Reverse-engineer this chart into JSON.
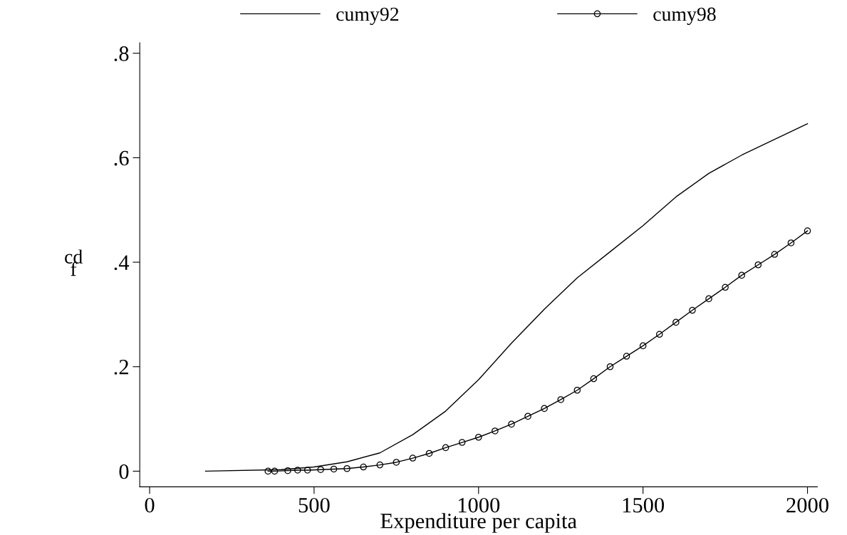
{
  "chart_data": {
    "type": "line",
    "xlabel": "Expenditure per capita",
    "ylabel": "cd\nf",
    "xlim": [
      -30,
      2030
    ],
    "ylim": [
      -0.03,
      0.82
    ],
    "xticks": [
      0,
      500,
      1000,
      1500,
      2000
    ],
    "yticks": [
      {
        "value": 0,
        "label": "0"
      },
      {
        "value": 0.2,
        "label": ".2"
      },
      {
        "value": 0.4,
        "label": ".4"
      },
      {
        "value": 0.6,
        "label": ".6"
      },
      {
        "value": 0.8,
        "label": ".8"
      }
    ],
    "grid": false,
    "legend": "top",
    "series": [
      {
        "name": "cumy92",
        "color": "#000000",
        "marker": "none",
        "x": [
          170,
          400,
          500,
          600,
          700,
          800,
          900,
          1000,
          1100,
          1200,
          1300,
          1400,
          1500,
          1600,
          1700,
          1800,
          1900,
          2000
        ],
        "values": [
          0,
          0.003,
          0.008,
          0.018,
          0.035,
          0.07,
          0.115,
          0.175,
          0.245,
          0.31,
          0.37,
          0.42,
          0.47,
          0.525,
          0.57,
          0.605,
          0.635,
          0.665
        ]
      },
      {
        "name": "cumy98",
        "color": "#000000",
        "marker": "circle",
        "x": [
          360,
          380,
          420,
          450,
          480,
          520,
          560,
          600,
          650,
          700,
          750,
          800,
          850,
          900,
          950,
          1000,
          1050,
          1100,
          1150,
          1200,
          1250,
          1300,
          1350,
          1400,
          1450,
          1500,
          1550,
          1600,
          1650,
          1700,
          1750,
          1800,
          1850,
          1900,
          1950,
          2000
        ],
        "values": [
          0,
          0,
          0.001,
          0.002,
          0.002,
          0.003,
          0.004,
          0.005,
          0.008,
          0.012,
          0.017,
          0.025,
          0.034,
          0.045,
          0.055,
          0.065,
          0.077,
          0.09,
          0.105,
          0.12,
          0.137,
          0.155,
          0.177,
          0.2,
          0.22,
          0.24,
          0.262,
          0.285,
          0.308,
          0.33,
          0.352,
          0.375,
          0.395,
          0.415,
          0.437,
          0.46
        ]
      }
    ]
  }
}
